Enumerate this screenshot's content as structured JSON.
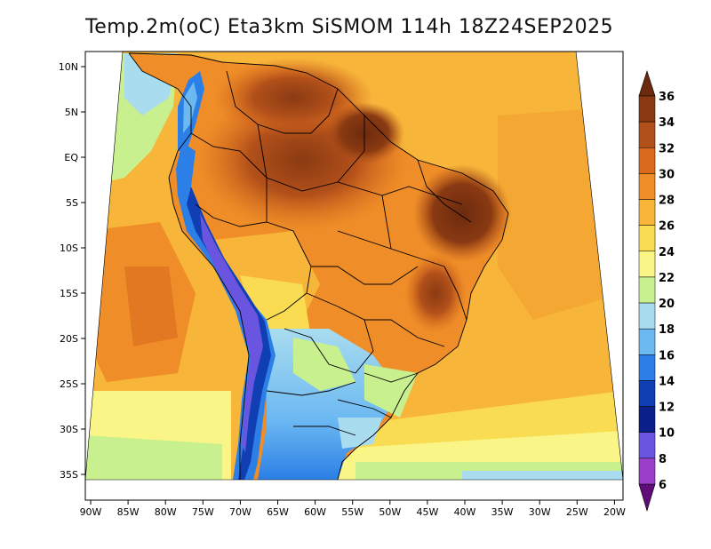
{
  "title": "Temp.2m(oC) Eta3km SiSMOM 114h 18Z24SEP2025",
  "map": {
    "lon_range": [
      -91,
      -20
    ],
    "lat_range": [
      -38,
      12
    ],
    "lon_ticks": [
      "90W",
      "85W",
      "80W",
      "75W",
      "70W",
      "65W",
      "60W",
      "55W",
      "50W",
      "45W",
      "40W",
      "35W",
      "30W",
      "25W",
      "20W"
    ],
    "lat_ticks": [
      "10N",
      "5N",
      "EQ",
      "5S",
      "10S",
      "15S",
      "20S",
      "25S",
      "30S",
      "35S"
    ]
  },
  "colorbar": {
    "labels": [
      "36",
      "34",
      "32",
      "30",
      "28",
      "26",
      "24",
      "22",
      "20",
      "18",
      "16",
      "14",
      "12",
      "10",
      "8",
      "6"
    ],
    "colors": [
      "#6b2a0e",
      "#8a3a12",
      "#b2501a",
      "#d96a1e",
      "#ef8e28",
      "#f7b53a",
      "#f9dc52",
      "#f9f587",
      "#c9f08e",
      "#a9dcef",
      "#6cb9f2",
      "#2b7fe6",
      "#103fb3",
      "#0b1f8a",
      "#6a55e0",
      "#9a3fc9",
      "#5f0b78"
    ]
  }
}
